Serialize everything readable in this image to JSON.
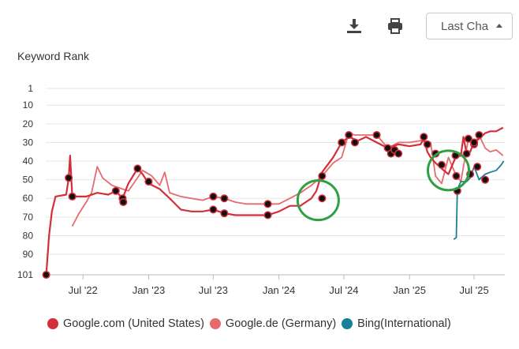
{
  "toolbar": {
    "download_icon": "download-icon",
    "print_icon": "print-icon",
    "period_label": "Last Cha",
    "period_caret_icon": "caret-up-icon"
  },
  "colors": {
    "google_com": "#d32f3a",
    "google_de": "#e86a6e",
    "bing": "#1a7f98",
    "highlight": "#2ea043",
    "marker": "#111111"
  },
  "chart_data": {
    "type": "line",
    "title": "Keyword Rank",
    "xlabel": "",
    "ylabel": "",
    "y_reversed": true,
    "ylim": [
      101,
      1
    ],
    "yticks": [
      "1",
      "10",
      "20",
      "30",
      "40",
      "50",
      "60",
      "70",
      "80",
      "90",
      "101"
    ],
    "xlim": [
      "2022-03-01",
      "2025-09-25"
    ],
    "xticks": [
      {
        "date": "2022-07-01",
        "label": "Jul '22"
      },
      {
        "date": "2023-01-01",
        "label": "Jan '23"
      },
      {
        "date": "2023-07-01",
        "label": "Jul '23"
      },
      {
        "date": "2024-01-01",
        "label": "Jan '24"
      },
      {
        "date": "2024-07-01",
        "label": "Jul '24"
      },
      {
        "date": "2025-01-01",
        "label": "Jan '25"
      },
      {
        "date": "2025-07-01",
        "label": "Jul '25"
      }
    ],
    "grid": true,
    "legend_position": "bottom",
    "series": [
      {
        "name": "Google.com (United States)",
        "color": "#d32f3a",
        "points": [
          [
            "2022-03-20",
            101
          ],
          [
            "2022-03-28",
            80
          ],
          [
            "2022-04-05",
            67
          ],
          [
            "2022-04-15",
            59
          ],
          [
            "2022-05-15",
            58
          ],
          [
            "2022-05-22",
            49
          ],
          [
            "2022-05-26",
            37
          ],
          [
            "2022-06-01",
            59
          ],
          [
            "2022-06-15",
            59
          ],
          [
            "2022-07-10",
            59
          ],
          [
            "2022-08-10",
            57
          ],
          [
            "2022-09-10",
            58
          ],
          [
            "2022-10-01",
            56
          ],
          [
            "2022-10-20",
            60
          ],
          [
            "2022-11-05",
            52
          ],
          [
            "2022-12-01",
            44
          ],
          [
            "2022-12-15",
            47
          ],
          [
            "2023-01-01",
            52
          ],
          [
            "2023-02-01",
            55
          ],
          [
            "2023-03-01",
            60
          ],
          [
            "2023-04-01",
            66
          ],
          [
            "2023-05-01",
            67
          ],
          [
            "2023-06-01",
            67
          ],
          [
            "2023-07-01",
            66
          ],
          [
            "2023-08-01",
            68
          ],
          [
            "2023-09-01",
            69
          ],
          [
            "2023-10-01",
            69
          ],
          [
            "2023-11-01",
            69
          ],
          [
            "2023-12-01",
            69
          ],
          [
            "2024-01-01",
            67
          ],
          [
            "2024-02-01",
            64
          ],
          [
            "2024-03-01",
            64
          ],
          [
            "2024-04-01",
            60
          ],
          [
            "2024-04-15",
            56
          ],
          [
            "2024-05-01",
            46
          ],
          [
            "2024-06-01",
            38
          ],
          [
            "2024-06-25",
            30
          ],
          [
            "2024-07-15",
            27
          ],
          [
            "2024-08-10",
            29
          ],
          [
            "2024-09-01",
            27
          ],
          [
            "2024-10-01",
            30
          ],
          [
            "2024-11-01",
            33
          ],
          [
            "2024-12-01",
            31
          ],
          [
            "2025-01-01",
            32
          ],
          [
            "2025-02-01",
            31
          ],
          [
            "2025-02-10",
            28
          ],
          [
            "2025-02-20",
            35
          ],
          [
            "2025-03-01",
            38
          ],
          [
            "2025-03-15",
            41
          ],
          [
            "2025-04-01",
            44
          ],
          [
            "2025-04-20",
            47
          ],
          [
            "2025-05-10",
            38
          ],
          [
            "2025-05-25",
            37
          ],
          [
            "2025-06-01",
            27
          ],
          [
            "2025-06-10",
            36
          ],
          [
            "2025-06-20",
            35
          ],
          [
            "2025-07-01",
            30
          ],
          [
            "2025-07-15",
            28
          ],
          [
            "2025-08-01",
            25
          ],
          [
            "2025-08-15",
            24
          ],
          [
            "2025-09-01",
            24
          ],
          [
            "2025-09-20",
            22
          ]
        ]
      },
      {
        "name": "Google.de (Germany)",
        "color": "#e86a6e",
        "points": [
          [
            "2022-06-01",
            75
          ],
          [
            "2022-06-20",
            68
          ],
          [
            "2022-07-10",
            62
          ],
          [
            "2022-07-25",
            57
          ],
          [
            "2022-08-10",
            43
          ],
          [
            "2022-08-25",
            49
          ],
          [
            "2022-09-20",
            53
          ],
          [
            "2022-10-20",
            55
          ],
          [
            "2022-11-05",
            56
          ],
          [
            "2022-11-20",
            52
          ],
          [
            "2022-12-15",
            45
          ],
          [
            "2023-01-10",
            48
          ],
          [
            "2023-02-01",
            53
          ],
          [
            "2023-02-15",
            46
          ],
          [
            "2023-03-01",
            57
          ],
          [
            "2023-04-01",
            59
          ],
          [
            "2023-05-01",
            60
          ],
          [
            "2023-06-01",
            61
          ],
          [
            "2023-07-01",
            59
          ],
          [
            "2023-08-01",
            60
          ],
          [
            "2023-09-01",
            62
          ],
          [
            "2023-10-01",
            63
          ],
          [
            "2023-11-01",
            63
          ],
          [
            "2023-12-01",
            63
          ],
          [
            "2024-01-01",
            63
          ],
          [
            "2024-02-01",
            60
          ],
          [
            "2024-03-01",
            57
          ],
          [
            "2024-04-01",
            53
          ],
          [
            "2024-05-01",
            48
          ],
          [
            "2024-06-01",
            41
          ],
          [
            "2024-06-25",
            38
          ],
          [
            "2024-07-15",
            25
          ],
          [
            "2024-08-01",
            26
          ],
          [
            "2024-10-01",
            26
          ],
          [
            "2024-11-01",
            33
          ],
          [
            "2024-12-01",
            30
          ],
          [
            "2025-01-01",
            30
          ],
          [
            "2025-02-01",
            29
          ],
          [
            "2025-03-01",
            30
          ],
          [
            "2025-03-15",
            48
          ],
          [
            "2025-04-01",
            52
          ],
          [
            "2025-04-20",
            38
          ],
          [
            "2025-05-10",
            47
          ],
          [
            "2025-05-25",
            51
          ],
          [
            "2025-06-15",
            28
          ],
          [
            "2025-07-01",
            31
          ],
          [
            "2025-07-15",
            26
          ],
          [
            "2025-08-01",
            33
          ],
          [
            "2025-08-15",
            35
          ],
          [
            "2025-09-01",
            34
          ],
          [
            "2025-09-20",
            37
          ]
        ]
      },
      {
        "name": "Bing(International)",
        "color": "#1a7f98",
        "points": [
          [
            "2025-05-05",
            82
          ],
          [
            "2025-05-12",
            81
          ],
          [
            "2025-05-15",
            56
          ],
          [
            "2025-05-20",
            53
          ],
          [
            "2025-05-25",
            51
          ],
          [
            "2025-06-10",
            51
          ],
          [
            "2025-06-20",
            49
          ],
          [
            "2025-07-01",
            43
          ],
          [
            "2025-07-15",
            50
          ],
          [
            "2025-08-01",
            47
          ],
          [
            "2025-08-15",
            46
          ],
          [
            "2025-09-01",
            45
          ],
          [
            "2025-09-15",
            42
          ],
          [
            "2025-09-22",
            40
          ]
        ]
      }
    ],
    "markers": [
      [
        "2022-03-20",
        101
      ],
      [
        "2022-05-22",
        49
      ],
      [
        "2022-06-01",
        59
      ],
      [
        "2022-10-01",
        56
      ],
      [
        "2022-10-20",
        60
      ],
      [
        "2022-10-22",
        62
      ],
      [
        "2022-12-01",
        44
      ],
      [
        "2023-01-01",
        51
      ],
      [
        "2023-07-01",
        59
      ],
      [
        "2023-07-01",
        66
      ],
      [
        "2023-08-01",
        60
      ],
      [
        "2023-08-01",
        68
      ],
      [
        "2023-12-01",
        63
      ],
      [
        "2023-12-01",
        69
      ],
      [
        "2024-05-01",
        48
      ],
      [
        "2024-05-01",
        60
      ],
      [
        "2024-06-25",
        30
      ],
      [
        "2024-07-15",
        26
      ],
      [
        "2024-08-01",
        30
      ],
      [
        "2024-10-01",
        26
      ],
      [
        "2024-11-01",
        33
      ],
      [
        "2024-11-10",
        36
      ],
      [
        "2024-11-20",
        34
      ],
      [
        "2024-12-01",
        36
      ],
      [
        "2025-02-10",
        27
      ],
      [
        "2025-02-20",
        31
      ],
      [
        "2025-03-15",
        36
      ],
      [
        "2025-04-01",
        42
      ],
      [
        "2025-05-10",
        37
      ],
      [
        "2025-05-12",
        48
      ],
      [
        "2025-05-15",
        56
      ],
      [
        "2025-06-10",
        36
      ],
      [
        "2025-06-15",
        28
      ],
      [
        "2025-07-01",
        31
      ],
      [
        "2025-07-01",
        30
      ],
      [
        "2025-06-20",
        47
      ],
      [
        "2025-07-10",
        43
      ],
      [
        "2025-07-15",
        26
      ],
      [
        "2025-08-01",
        50
      ]
    ],
    "highlights": [
      {
        "center": [
          "2024-04-20",
          61
        ]
      },
      {
        "center": [
          "2025-04-20",
          45
        ]
      }
    ]
  }
}
